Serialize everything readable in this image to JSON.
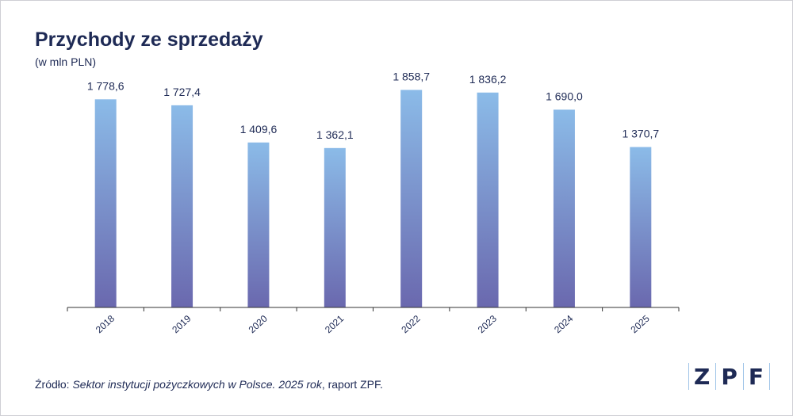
{
  "header": {
    "title": "Przychody ze sprzedaży",
    "subtitle": "(w mln PLN)"
  },
  "footer": {
    "source_prefix": "Źródło: ",
    "source_italic": "Sektor instytucji pożyczkowych w Polsce. 2025 rok",
    "source_suffix": ", raport ZPF."
  },
  "logo": {
    "letters": [
      "Z",
      "P",
      "F"
    ]
  },
  "colors": {
    "text": "#1e2a55",
    "bar_top": "#8bbbe8",
    "bar_bottom": "#6a68ae",
    "axis": "#333333",
    "logo_sep": "#9fc4e8"
  },
  "chart_data": {
    "type": "bar",
    "categories": [
      "2018",
      "2019",
      "2020",
      "2021",
      "2022",
      "2023",
      "2024",
      "2025"
    ],
    "values": [
      1778.6,
      1727.4,
      1409.6,
      1362.1,
      1858.7,
      1836.2,
      1690.0,
      1370.7
    ],
    "labels": [
      "1 778,6",
      "1 727,4",
      "1 409,6",
      "1 362,1",
      "1 858,7",
      "1 836,2",
      "1 690,0",
      "1 370,7"
    ],
    "ylim": [
      0,
      1950
    ],
    "grid": false,
    "legend": "none"
  }
}
